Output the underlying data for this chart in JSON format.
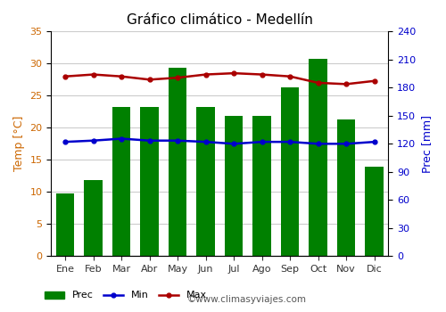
{
  "title": "Gráfico climático - Medellín",
  "months": [
    "Ene",
    "Feb",
    "Mar",
    "Abr",
    "May",
    "Jun",
    "Jul",
    "Ago",
    "Sep",
    "Oct",
    "Nov",
    "Dic"
  ],
  "prec": [
    9.8,
    11.8,
    23.3,
    23.3,
    29.3,
    23.3,
    21.8,
    21.8,
    26.3,
    30.8,
    21.3,
    14.0
  ],
  "temp_min": [
    17.8,
    18.0,
    18.3,
    18.0,
    18.0,
    17.8,
    17.5,
    17.8,
    17.8,
    17.5,
    17.5,
    17.8
  ],
  "temp_max": [
    28.0,
    28.3,
    28.0,
    27.5,
    27.8,
    28.3,
    28.5,
    28.3,
    28.0,
    27.0,
    26.8,
    27.3
  ],
  "bar_color": "#008000",
  "min_color": "#0000cc",
  "max_color": "#aa0000",
  "left_ylim": [
    0,
    35
  ],
  "right_ylim": [
    0,
    240
  ],
  "left_yticks": [
    0,
    5,
    10,
    15,
    20,
    25,
    30,
    35
  ],
  "right_yticks": [
    0,
    30,
    60,
    90,
    120,
    150,
    180,
    210,
    240
  ],
  "ylabel_left": "Temp [°C]",
  "ylabel_right": "Prec [mm]",
  "left_tick_color": "#cc6600",
  "right_tick_color": "#0000cc",
  "watermark": "©www.climasyviajes.com",
  "legend_prec": "Prec",
  "legend_min": "Min",
  "legend_max": "Max",
  "background_color": "#ffffff",
  "grid_color": "#cccccc",
  "title_fontsize": 11,
  "tick_fontsize": 8,
  "ylabel_fontsize": 9
}
